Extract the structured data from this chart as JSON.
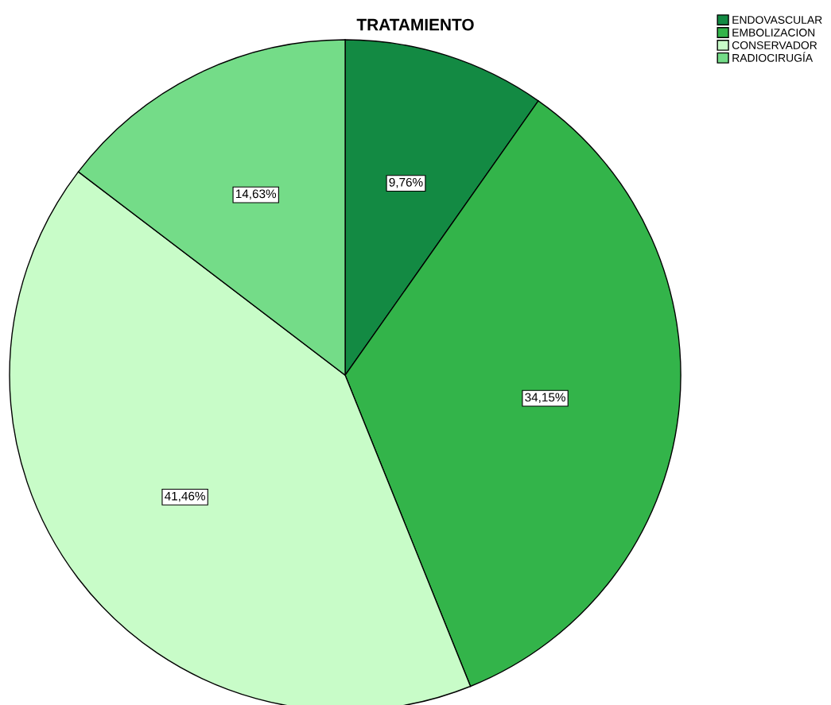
{
  "chart_data": {
    "type": "pie",
    "title": "TRATAMIENTO",
    "categories": [
      "ENDOVASCULAR",
      "EMBOLIZACION",
      "CONSERVADOR",
      "RADIOCIRUGÍA"
    ],
    "values": [
      9.76,
      34.15,
      41.46,
      14.63
    ],
    "colors": [
      "#138a43",
      "#33b44a",
      "#c8fcc8",
      "#74dc88"
    ],
    "value_labels": [
      "9,76%",
      "34,15%",
      "41,46%",
      "14,63%"
    ],
    "legend": "top right"
  }
}
